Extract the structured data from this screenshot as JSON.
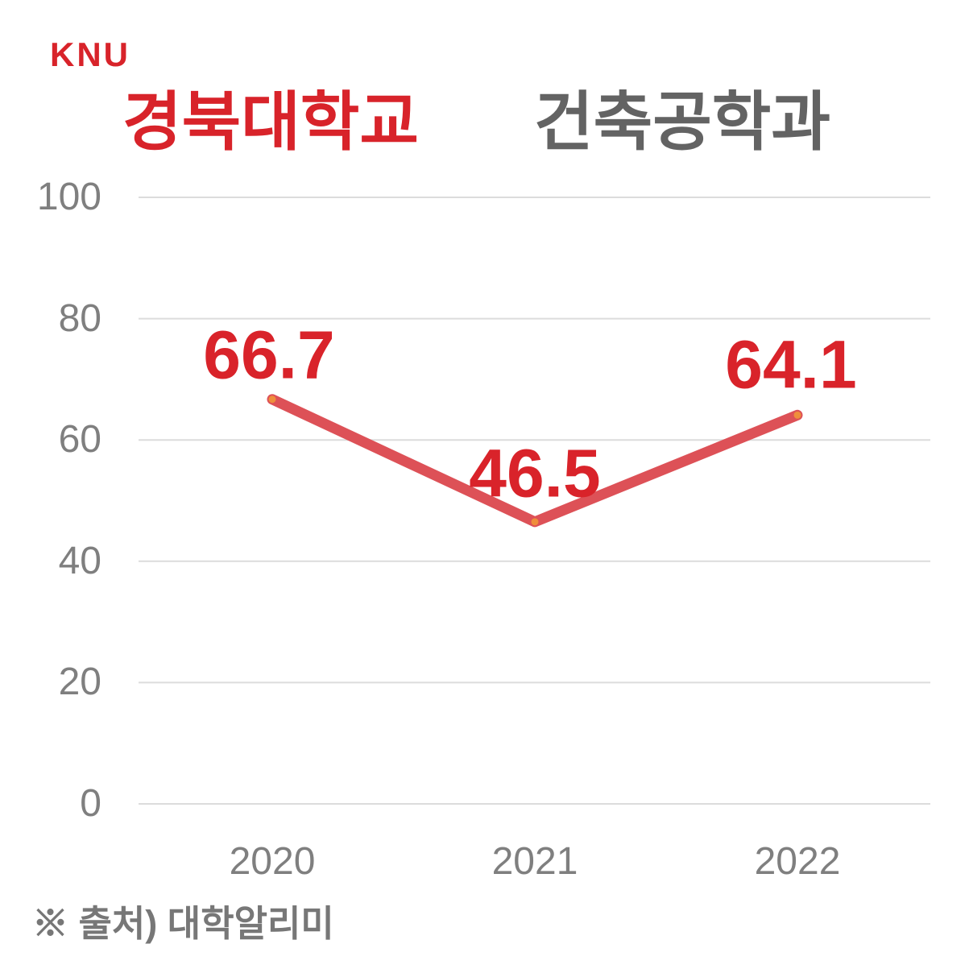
{
  "logo": {
    "text": "KNU"
  },
  "title": {
    "university": "경북대학교",
    "department": "건축공학과"
  },
  "source_note": "※ 출처) 대학알리미",
  "colors": {
    "accent_red": "#d8232a",
    "title_gray": "#636363",
    "axis_text": "#7f7f7f",
    "source_text": "#777777",
    "grid": "#dcdcdc",
    "line": "#dd5157",
    "marker": "#ef8e3b",
    "background": "#ffffff"
  },
  "chart_data": {
    "type": "line",
    "title": "경북대학교 건축공학과",
    "categories": [
      "2020",
      "2021",
      "2022"
    ],
    "values": [
      66.7,
      46.5,
      64.1
    ],
    "data_labels": [
      "66.7",
      "46.5",
      "64.1"
    ],
    "y_ticks": [
      0,
      20,
      40,
      60,
      80,
      100
    ],
    "ylim": [
      0,
      100
    ],
    "xlabel": "",
    "ylabel": "",
    "grid": true,
    "legend": "none",
    "grid_color": "#dcdcdc",
    "line_color": "#dd5157",
    "marker_color": "#ef8e3b",
    "label_color": "#d9232a"
  }
}
